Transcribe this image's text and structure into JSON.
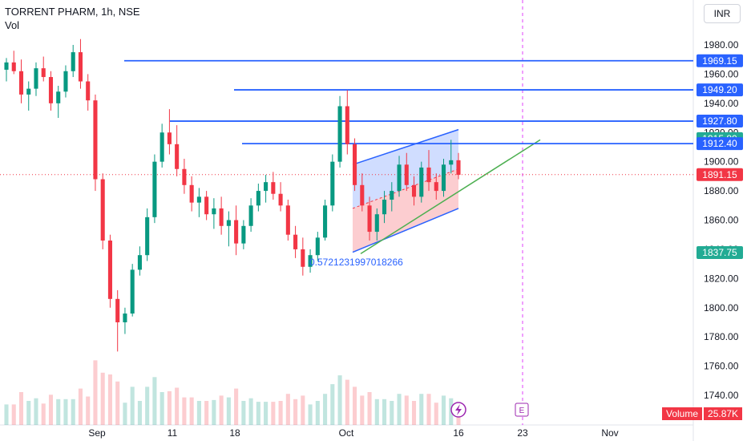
{
  "header": {
    "title": "TORRENT PHARM, 1h, NSE",
    "indicator": "Vol",
    "currency": "INR"
  },
  "chart_data": {
    "type": "candlestick",
    "title": "TORRENT PHARM, 1h, NSE",
    "ylim": [
      1730,
      1990
    ],
    "y_ticks": [
      1740,
      1760,
      1780,
      1800,
      1820,
      1840,
      1860,
      1880,
      1900,
      1920,
      1940,
      1960,
      1980
    ],
    "x_ticks": [
      "Sep",
      "11",
      "18",
      "Oct",
      "16",
      "23",
      "Nov"
    ],
    "candles": [
      [
        1963,
        1971,
        1955,
        1968
      ],
      [
        1968,
        1976,
        1960,
        1962
      ],
      [
        1962,
        1970,
        1940,
        1946
      ],
      [
        1946,
        1955,
        1935,
        1950
      ],
      [
        1950,
        1968,
        1945,
        1964
      ],
      [
        1964,
        1972,
        1955,
        1958
      ],
      [
        1958,
        1962,
        1935,
        1940
      ],
      [
        1940,
        1952,
        1930,
        1948
      ],
      [
        1948,
        1966,
        1944,
        1962
      ],
      [
        1962,
        1980,
        1958,
        1975
      ],
      [
        1975,
        1984,
        1950,
        1955
      ],
      [
        1955,
        1960,
        1935,
        1942
      ],
      [
        1942,
        1946,
        1880,
        1888
      ],
      [
        1888,
        1892,
        1840,
        1846
      ],
      [
        1846,
        1850,
        1800,
        1806
      ],
      [
        1806,
        1812,
        1770,
        1790
      ],
      [
        1790,
        1800,
        1782,
        1796
      ],
      [
        1796,
        1830,
        1794,
        1826
      ],
      [
        1826,
        1842,
        1822,
        1836
      ],
      [
        1836,
        1868,
        1832,
        1862
      ],
      [
        1862,
        1905,
        1858,
        1900
      ],
      [
        1900,
        1926,
        1896,
        1920
      ],
      [
        1920,
        1936,
        1905,
        1912
      ],
      [
        1912,
        1925,
        1890,
        1895
      ],
      [
        1895,
        1902,
        1878,
        1884
      ],
      [
        1884,
        1890,
        1866,
        1872
      ],
      [
        1872,
        1882,
        1862,
        1876
      ],
      [
        1876,
        1880,
        1860,
        1864
      ],
      [
        1864,
        1875,
        1854,
        1868
      ],
      [
        1868,
        1876,
        1850,
        1856
      ],
      [
        1856,
        1866,
        1842,
        1860
      ],
      [
        1860,
        1870,
        1836,
        1844
      ],
      [
        1844,
        1860,
        1840,
        1856
      ],
      [
        1856,
        1875,
        1852,
        1870
      ],
      [
        1870,
        1885,
        1866,
        1880
      ],
      [
        1880,
        1891,
        1872,
        1886
      ],
      [
        1886,
        1893,
        1874,
        1878
      ],
      [
        1878,
        1886,
        1866,
        1870
      ],
      [
        1870,
        1874,
        1846,
        1850
      ],
      [
        1850,
        1856,
        1834,
        1840
      ],
      [
        1840,
        1848,
        1822,
        1828
      ],
      [
        1828,
        1840,
        1824,
        1836
      ],
      [
        1836,
        1852,
        1832,
        1848
      ],
      [
        1848,
        1874,
        1846,
        1870
      ],
      [
        1870,
        1905,
        1866,
        1900
      ],
      [
        1900,
        1945,
        1896,
        1938
      ],
      [
        1938,
        1949,
        1905,
        1912
      ],
      [
        1912,
        1916,
        1880,
        1884
      ],
      [
        1884,
        1892,
        1866,
        1870
      ],
      [
        1870,
        1876,
        1846,
        1852
      ],
      [
        1852,
        1868,
        1846,
        1864
      ],
      [
        1864,
        1880,
        1858,
        1874
      ],
      [
        1874,
        1886,
        1866,
        1880
      ],
      [
        1880,
        1904,
        1876,
        1898
      ],
      [
        1898,
        1906,
        1880,
        1884
      ],
      [
        1884,
        1890,
        1870,
        1876
      ],
      [
        1876,
        1900,
        1872,
        1896
      ],
      [
        1896,
        1908,
        1880,
        1886
      ],
      [
        1886,
        1892,
        1874,
        1880
      ],
      [
        1880,
        1902,
        1876,
        1898
      ],
      [
        1898,
        1915,
        1892,
        1901
      ],
      [
        1901,
        1906,
        1888,
        1891
      ]
    ],
    "horizontal_lines": [
      1969.15,
      1949.2,
      1927.8,
      1912.4
    ],
    "channel": {
      "upper": [
        1898,
        1922
      ],
      "lower": [
        1838,
        1868
      ]
    },
    "trend_line": [
      1837,
      1915
    ],
    "annotation": "0.5721231997018266",
    "price_labels": [
      {
        "value": "1969.15",
        "color": "#2962ff"
      },
      {
        "value": "1949.20",
        "color": "#2962ff"
      },
      {
        "value": "1927.80",
        "color": "#2962ff"
      },
      {
        "value": "1915.80",
        "color": "#22ab94"
      },
      {
        "value": "1912.40",
        "color": "#2962ff"
      },
      {
        "value": "1891.15",
        "color": "#f23645"
      },
      {
        "value": "1837.75",
        "color": "#22ab94"
      }
    ],
    "volume": {
      "label": "Volume",
      "value": "25.87K"
    },
    "colors": {
      "up": "#089981",
      "down": "#f23645",
      "line": "#2962ff",
      "trend": "#4caf50"
    }
  },
  "events": {
    "earnings_badge": "E"
  }
}
